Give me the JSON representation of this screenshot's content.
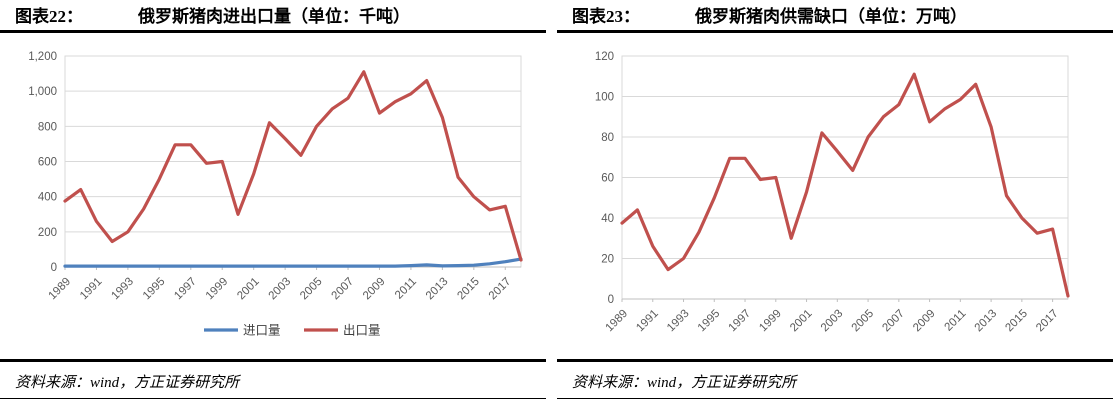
{
  "panels": [
    {
      "figure_label": "图表22：",
      "title": "俄罗斯猪肉进出口量（单位：千吨）",
      "source": "资料来源：wind，方正证券研究所"
    },
    {
      "figure_label": "图表23：",
      "title": "俄罗斯猪肉供需缺口（单位：万吨）",
      "source": "资料来源：wind，方正证券研究所"
    }
  ],
  "colors": {
    "import_blue": "#4F81BD",
    "export_red": "#C0504D",
    "gridline": "#D9D9D9",
    "axis_line": "#BFBFBF",
    "tick_text": "#595959"
  },
  "chart_data": [
    {
      "type": "line",
      "title": "俄罗斯猪肉进出口量（单位：千吨）",
      "xlabel": "",
      "ylabel": "",
      "x": [
        1989,
        1990,
        1991,
        1992,
        1993,
        1994,
        1995,
        1996,
        1997,
        1998,
        1999,
        2000,
        2001,
        2002,
        2003,
        2004,
        2005,
        2006,
        2007,
        2008,
        2009,
        2010,
        2011,
        2012,
        2013,
        2014,
        2015,
        2016,
        2017,
        2018
      ],
      "x_tick_labels": [
        "1989",
        "1991",
        "1993",
        "1995",
        "1997",
        "1999",
        "2001",
        "2003",
        "2005",
        "2007",
        "2009",
        "2011",
        "2013",
        "2015",
        "2017"
      ],
      "ylim": [
        0,
        1200
      ],
      "yticks": [
        0,
        200,
        400,
        600,
        800,
        1000,
        1200
      ],
      "ytick_labels": [
        "0",
        "200",
        "400",
        "600",
        "800",
        "1,000",
        "1,200"
      ],
      "grid": true,
      "legend_position": "bottom",
      "series": [
        {
          "name": "进口量",
          "color": "#4F81BD",
          "values": [
            5,
            5,
            5,
            5,
            5,
            5,
            5,
            5,
            5,
            5,
            5,
            5,
            5,
            5,
            5,
            5,
            5,
            5,
            5,
            5,
            5,
            5,
            8,
            12,
            6,
            8,
            10,
            18,
            30,
            45
          ]
        },
        {
          "name": "出口量",
          "color": "#C0504D",
          "values": [
            375,
            440,
            260,
            145,
            200,
            330,
            500,
            695,
            695,
            590,
            600,
            300,
            530,
            820,
            730,
            635,
            800,
            900,
            960,
            1110,
            875,
            940,
            985,
            1060,
            850,
            510,
            400,
            325,
            345,
            40
          ]
        }
      ]
    },
    {
      "type": "line",
      "title": "俄罗斯猪肉供需缺口（单位：万吨）",
      "xlabel": "",
      "ylabel": "",
      "x": [
        1989,
        1990,
        1991,
        1992,
        1993,
        1994,
        1995,
        1996,
        1997,
        1998,
        1999,
        2000,
        2001,
        2002,
        2003,
        2004,
        2005,
        2006,
        2007,
        2008,
        2009,
        2010,
        2011,
        2012,
        2013,
        2014,
        2015,
        2016,
        2017,
        2018
      ],
      "x_tick_labels": [
        "1989",
        "1991",
        "1993",
        "1995",
        "1997",
        "1999",
        "2001",
        "2003",
        "2005",
        "2007",
        "2009",
        "2011",
        "2013",
        "2015",
        "2017"
      ],
      "ylim": [
        0,
        120
      ],
      "yticks": [
        0,
        20,
        40,
        60,
        80,
        100,
        120
      ],
      "ytick_labels": [
        "0",
        "20",
        "40",
        "60",
        "80",
        "100",
        "120"
      ],
      "grid": true,
      "legend_position": "none",
      "series": [
        {
          "name": "供需缺口",
          "color": "#C0504D",
          "values": [
            37.5,
            44,
            26,
            14.5,
            20,
            33,
            50,
            69.5,
            69.5,
            59,
            60,
            30,
            53,
            82,
            73,
            63.5,
            80,
            90,
            96,
            111,
            87.5,
            94,
            98.5,
            106,
            85,
            51,
            40,
            32.5,
            34.5,
            1.5
          ]
        }
      ]
    }
  ]
}
